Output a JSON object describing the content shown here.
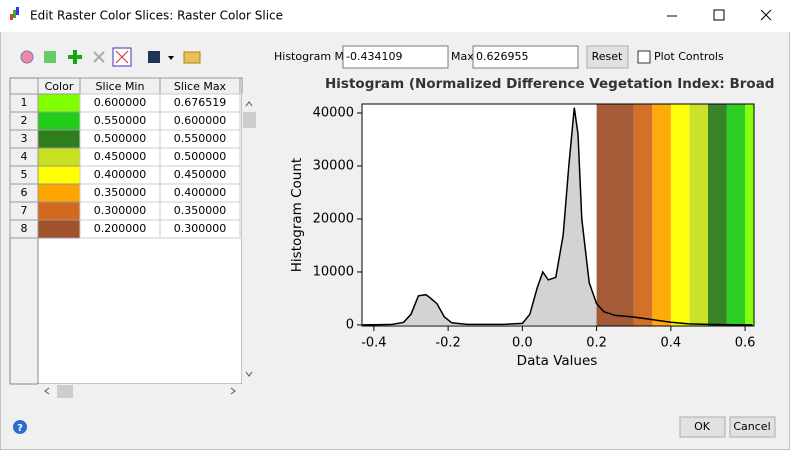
{
  "window": {
    "title": "Edit Raster Color Slices: Raster Color Slice"
  },
  "controls": {
    "hist_min_label": "Histogram Min",
    "hist_min": -0.434109,
    "max_label": "Max",
    "hist_max": 0.626955,
    "reset": "Reset",
    "plot_controls": "Plot Controls"
  },
  "table": {
    "headers": [
      "Color",
      "Slice Min",
      "Slice Max"
    ],
    "rows": [
      {
        "num": "1",
        "color": "#80ff00",
        "min": "0.600000",
        "max": "0.676519"
      },
      {
        "num": "2",
        "color": "#22cc18",
        "min": "0.550000",
        "max": "0.600000"
      },
      {
        "num": "3",
        "color": "#2e7d1e",
        "min": "0.500000",
        "max": "0.550000"
      },
      {
        "num": "4",
        "color": "#c8e020",
        "min": "0.450000",
        "max": "0.500000"
      },
      {
        "num": "5",
        "color": "#ffff00",
        "min": "0.400000",
        "max": "0.450000"
      },
      {
        "num": "6",
        "color": "#ffa500",
        "min": "0.350000",
        "max": "0.400000"
      },
      {
        "num": "7",
        "color": "#d2691e",
        "min": "0.300000",
        "max": "0.350000"
      },
      {
        "num": "8",
        "color": "#a0522d",
        "min": "0.200000",
        "max": "0.300000"
      }
    ]
  },
  "chart_data": {
    "type": "area",
    "title": "Histogram (Normalized Difference Vegetation Index: BroadbandVIs.dat)",
    "x_label": "Data Values",
    "y_label": "Histogram Count",
    "x": [
      -0.43,
      -0.35,
      -0.32,
      -0.3,
      -0.28,
      -0.26,
      -0.25,
      -0.23,
      -0.21,
      -0.19,
      -0.15,
      -0.05,
      0,
      0.02,
      0.04,
      0.055,
      0.07,
      0.09,
      0.11,
      0.125,
      0.14,
      0.15,
      0.16,
      0.18,
      0.2,
      0.22,
      0.25,
      0.3,
      0.35,
      0.4,
      0.45,
      0.5,
      0.6,
      0.62
    ],
    "values": [
      0,
      100,
      500,
      2000,
      5500,
      5700,
      5200,
      4000,
      1500,
      400,
      100,
      100,
      300,
      2000,
      7000,
      10000,
      8500,
      9000,
      17000,
      30000,
      41000,
      36000,
      20000,
      8000,
      4000,
      2500,
      1800,
      1500,
      1000,
      500,
      200,
      100,
      0,
      0
    ],
    "color": "#d3d3d3",
    "line_color": "#000000",
    "xlim": [
      -0.432,
      0.624
    ],
    "ylim": [
      -200,
      41700
    ],
    "xticks": [
      -0.4,
      -0.2,
      {
        "value": 0,
        "label": "0.0"
      },
      0.2,
      0.4,
      0.6
    ],
    "yticks": [
      0,
      10000,
      20000,
      30000,
      40000
    ]
  },
  "buttons": {
    "ok": "OK",
    "cancel": "Cancel"
  }
}
